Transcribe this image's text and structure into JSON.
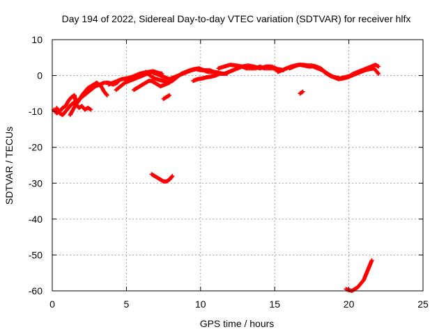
{
  "chart_data": {
    "type": "scatter",
    "title": "Day 194 of 2022, Sidereal Day-to-day VTEC variation (SDTVAR) for receiver hlfx",
    "xlabel": "GPS time / hours",
    "ylabel": "SDTVAR / TECUs",
    "xlim": [
      0,
      25
    ],
    "ylim": [
      -60,
      10
    ],
    "xticks": [
      "0",
      "5",
      "10",
      "15",
      "20",
      "25"
    ],
    "yticks": [
      "10",
      "0",
      "-10",
      "-20",
      "-30",
      "-40",
      "-50",
      "-60"
    ],
    "grid": true,
    "marker": "+",
    "color": "#ff0000",
    "series": [
      {
        "points": [
          [
            0.1,
            -9.5
          ],
          [
            0.3,
            -10.5
          ],
          [
            0.5,
            -10
          ],
          [
            0.7,
            -9
          ],
          [
            0.9,
            -8.5
          ],
          [
            1.1,
            -7
          ],
          [
            1.3,
            -6
          ],
          [
            1.5,
            -5.5
          ],
          [
            1.6,
            -8
          ],
          [
            1.8,
            -9
          ],
          [
            2.0,
            -8.5
          ],
          [
            2.2,
            -9.5
          ],
          [
            2.4,
            -9
          ],
          [
            2.6,
            -9.5
          ]
        ]
      },
      {
        "points": [
          [
            0.3,
            -9
          ],
          [
            0.5,
            -10.5
          ],
          [
            0.7,
            -11
          ],
          [
            0.9,
            -10
          ],
          [
            1.1,
            -9
          ],
          [
            1.3,
            -8
          ],
          [
            1.5,
            -7.5
          ],
          [
            1.7,
            -7
          ],
          [
            2.0,
            -6
          ],
          [
            2.3,
            -5
          ],
          [
            2.6,
            -4
          ],
          [
            2.9,
            -3
          ],
          [
            3.2,
            -2.5
          ],
          [
            3.5,
            -2
          ],
          [
            3.8,
            -2
          ],
          [
            4.1,
            -2.5
          ],
          [
            4.4,
            -2
          ]
        ]
      },
      {
        "points": [
          [
            1.2,
            -11
          ],
          [
            1.4,
            -9.5
          ],
          [
            1.6,
            -8
          ],
          [
            1.8,
            -7
          ],
          [
            2.0,
            -5.5
          ],
          [
            2.2,
            -4.5
          ],
          [
            2.4,
            -3.5
          ],
          [
            2.6,
            -3
          ],
          [
            2.8,
            -2.5
          ],
          [
            3.0,
            -2
          ],
          [
            3.3,
            -3
          ],
          [
            3.5,
            -4.5
          ],
          [
            3.7,
            -5.5
          ]
        ]
      },
      {
        "points": [
          [
            3.8,
            -2.5
          ],
          [
            4.1,
            -2
          ],
          [
            4.4,
            -1.5
          ],
          [
            4.7,
            -1
          ],
          [
            5.0,
            -0.8
          ],
          [
            5.3,
            -0.5
          ],
          [
            5.6,
            0
          ],
          [
            5.9,
            0.5
          ],
          [
            6.2,
            0.8
          ],
          [
            6.5,
            1
          ],
          [
            6.8,
            1.2
          ],
          [
            7.1,
            0.8
          ],
          [
            7.4,
            0.5
          ]
        ]
      },
      {
        "points": [
          [
            4.3,
            -4
          ],
          [
            4.6,
            -3
          ],
          [
            4.9,
            -2
          ],
          [
            5.2,
            -1.5
          ],
          [
            5.5,
            -1
          ],
          [
            5.8,
            -0.5
          ],
          [
            6.1,
            0
          ],
          [
            6.4,
            0.5
          ],
          [
            6.7,
            1
          ],
          [
            7.0,
            0.5
          ],
          [
            7.3,
            0
          ],
          [
            7.6,
            -0.5
          ],
          [
            7.9,
            -1
          ]
        ]
      },
      {
        "points": [
          [
            5.5,
            -4
          ],
          [
            5.7,
            -3.5
          ],
          [
            5.9,
            -3
          ],
          [
            6.1,
            -2.5
          ],
          [
            6.3,
            -2
          ],
          [
            6.5,
            -1.5
          ],
          [
            6.7,
            -1.5
          ],
          [
            6.9,
            -2
          ],
          [
            7.1,
            -2.5
          ],
          [
            7.3,
            -3
          ],
          [
            7.6,
            -2.5
          ],
          [
            7.9,
            -2
          ]
        ]
      },
      {
        "points": [
          [
            6.3,
            1
          ],
          [
            6.6,
            0
          ],
          [
            6.9,
            -0.8
          ],
          [
            7.2,
            -1.2
          ],
          [
            7.5,
            -1.5
          ],
          [
            7.8,
            -2
          ],
          [
            8.1,
            -1.5
          ],
          [
            8.4,
            -0.5
          ],
          [
            8.7,
            0.5
          ],
          [
            9.0,
            1
          ],
          [
            9.3,
            1.5
          ],
          [
            9.6,
            1.8
          ],
          [
            9.9,
            2
          ],
          [
            10.2,
            1.5
          ],
          [
            10.5,
            1
          ],
          [
            10.8,
            1
          ]
        ]
      },
      {
        "points": [
          [
            7.9,
            -1
          ],
          [
            8.2,
            -0.5
          ],
          [
            8.5,
            0
          ],
          [
            8.8,
            0.5
          ],
          [
            9.1,
            1
          ],
          [
            9.4,
            1.5
          ],
          [
            9.7,
            1.8
          ],
          [
            10.0,
            1.5
          ],
          [
            10.3,
            1.5
          ],
          [
            10.6,
            1.5
          ],
          [
            10.9,
            1
          ],
          [
            11.2,
            0.8
          ],
          [
            11.5,
            0.5
          ],
          [
            11.8,
            0.5
          ]
        ]
      },
      {
        "points": [
          [
            9.5,
            -1.5
          ],
          [
            9.8,
            -1
          ],
          [
            10.1,
            -0.8
          ],
          [
            10.4,
            -0.5
          ],
          [
            10.7,
            -0.3
          ],
          [
            11.0,
            0
          ],
          [
            11.3,
            0.5
          ],
          [
            11.6,
            0.5
          ],
          [
            11.9,
            1
          ],
          [
            12.2,
            1.5
          ],
          [
            12.5,
            2
          ],
          [
            12.8,
            2.5
          ],
          [
            13.1,
            2
          ],
          [
            13.4,
            2
          ],
          [
            13.7,
            2
          ],
          [
            14.0,
            2.5
          ],
          [
            14.3,
            2
          ],
          [
            14.6,
            2
          ],
          [
            14.9,
            2
          ],
          [
            15.2,
            1.5
          ],
          [
            15.5,
            1.5
          ]
        ]
      },
      {
        "points": [
          [
            11.2,
            2
          ],
          [
            11.6,
            2.5
          ],
          [
            12.0,
            3
          ],
          [
            12.4,
            2.8
          ],
          [
            12.8,
            2.5
          ],
          [
            13.2,
            2.8
          ],
          [
            13.6,
            2.5
          ],
          [
            14.0,
            2
          ],
          [
            14.4,
            2.5
          ],
          [
            14.8,
            2.5
          ],
          [
            15.2,
            1.8
          ],
          [
            15.6,
            1.5
          ]
        ]
      },
      {
        "points": [
          [
            15.2,
            1
          ],
          [
            15.5,
            1.5
          ],
          [
            15.8,
            2
          ],
          [
            16.1,
            2.5
          ],
          [
            16.4,
            2.8
          ],
          [
            16.7,
            3
          ],
          [
            17.0,
            2.8
          ],
          [
            17.3,
            2.5
          ],
          [
            17.6,
            2.5
          ],
          [
            17.9,
            2
          ],
          [
            18.2,
            1.5
          ],
          [
            18.5,
            0.5
          ],
          [
            18.8,
            -0.2
          ],
          [
            19.1,
            -0.5
          ],
          [
            19.4,
            -0.8
          ],
          [
            19.7,
            -0.5
          ],
          [
            20.0,
            -0.2
          ],
          [
            20.3,
            0.5
          ],
          [
            20.6,
            1
          ],
          [
            20.9,
            1.5
          ],
          [
            21.2,
            2
          ],
          [
            21.5,
            2.5
          ],
          [
            21.8,
            3
          ],
          [
            22.0,
            2.5
          ]
        ]
      },
      {
        "points": [
          [
            16.0,
            2
          ],
          [
            16.3,
            2.5
          ],
          [
            16.6,
            3
          ],
          [
            16.9,
            3
          ],
          [
            17.2,
            2.8
          ],
          [
            17.5,
            2.8
          ],
          [
            17.8,
            2.5
          ],
          [
            18.1,
            2
          ],
          [
            18.4,
            1
          ],
          [
            18.7,
            0.2
          ],
          [
            19.0,
            -0.5
          ],
          [
            19.3,
            -1
          ],
          [
            19.6,
            -0.8
          ],
          [
            19.9,
            -0.5
          ],
          [
            20.2,
            0
          ],
          [
            20.5,
            0.5
          ],
          [
            20.8,
            1
          ],
          [
            21.1,
            1.5
          ],
          [
            21.4,
            1.8
          ],
          [
            21.7,
            2
          ],
          [
            22.0,
            0.5
          ]
        ]
      },
      {
        "points": [
          [
            7.5,
            -6.5
          ],
          [
            7.7,
            -6
          ],
          [
            7.9,
            -5.5
          ]
        ]
      },
      {
        "points": [
          [
            16.7,
            -5
          ],
          [
            16.9,
            -4.5
          ]
        ]
      },
      {
        "points": [
          [
            6.7,
            -27.5
          ],
          [
            6.9,
            -28
          ],
          [
            7.1,
            -28.5
          ],
          [
            7.3,
            -29
          ],
          [
            7.5,
            -29.5
          ],
          [
            7.7,
            -29.5
          ],
          [
            7.9,
            -29
          ],
          [
            8.0,
            -28.5
          ],
          [
            8.1,
            -28
          ]
        ]
      },
      {
        "points": [
          [
            19.8,
            -59.5
          ],
          [
            20.0,
            -59.8
          ],
          [
            20.2,
            -60
          ],
          [
            20.4,
            -59.5
          ],
          [
            20.6,
            -59
          ],
          [
            20.8,
            -58
          ],
          [
            21.0,
            -57
          ],
          [
            21.1,
            -56
          ],
          [
            21.2,
            -55
          ],
          [
            21.3,
            -54
          ],
          [
            21.4,
            -53
          ],
          [
            21.5,
            -52
          ],
          [
            21.55,
            -51.5
          ]
        ]
      }
    ]
  }
}
